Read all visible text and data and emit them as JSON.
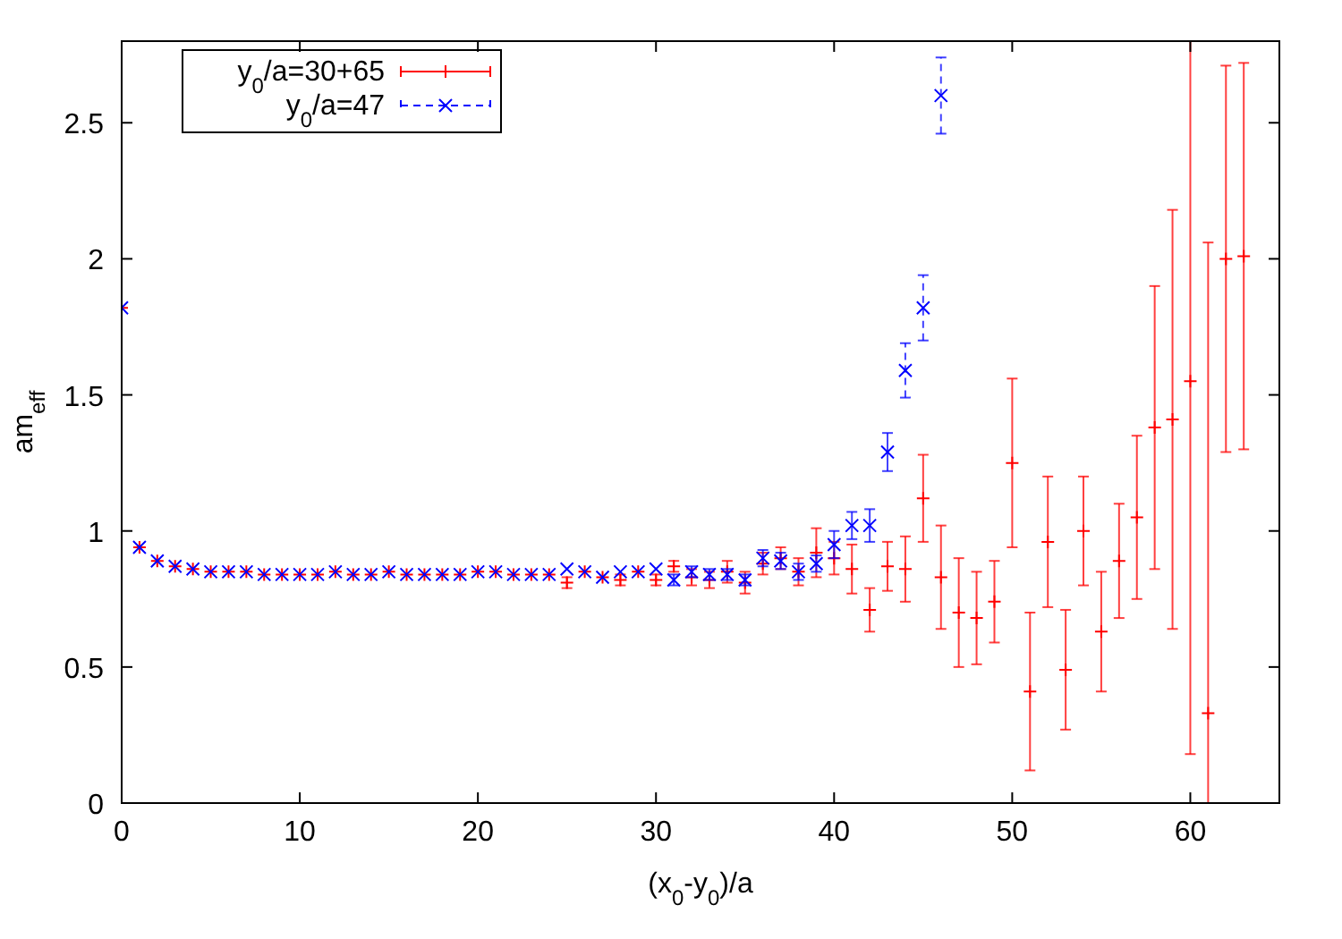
{
  "chart_data": {
    "type": "scatter",
    "xlabel": "(x$_{0}$-y$_{0}$)/a",
    "ylabel": "am$_{eff}$",
    "x": [
      0,
      1,
      2,
      3,
      4,
      5,
      6,
      7,
      8,
      9,
      10,
      11,
      12,
      13,
      14,
      15,
      16,
      17,
      18,
      19,
      20,
      21,
      22,
      23,
      24,
      25,
      26,
      27,
      28,
      29,
      30,
      31,
      32,
      33,
      34,
      35,
      36,
      37,
      38,
      39,
      40,
      41,
      42,
      43,
      44,
      45,
      46,
      47,
      48,
      49,
      50,
      51,
      52,
      53,
      54,
      55,
      56,
      57,
      58,
      59,
      60,
      61,
      62,
      63
    ],
    "series": [
      {
        "name": "y$_{0}$/a=30+65",
        "color": "#ff0000",
        "marker": "cross",
        "line_style": "solid",
        "values": [
          1.82,
          0.94,
          0.89,
          0.87,
          0.86,
          0.85,
          0.85,
          0.85,
          0.84,
          0.84,
          0.84,
          0.84,
          0.85,
          0.84,
          0.84,
          0.85,
          0.84,
          0.84,
          0.84,
          0.84,
          0.85,
          0.85,
          0.84,
          0.84,
          0.84,
          0.81,
          0.85,
          0.83,
          0.82,
          0.85,
          0.82,
          0.87,
          0.83,
          0.82,
          0.85,
          0.81,
          0.88,
          0.9,
          0.85,
          0.92,
          0.9,
          0.86,
          0.71,
          0.87,
          0.86,
          1.12,
          0.83,
          0.7,
          0.68,
          0.74,
          1.25,
          0.41,
          0.96,
          0.49,
          1.0,
          0.63,
          0.89,
          1.05,
          1.38,
          1.41,
          1.55,
          0.33,
          2.0,
          2.01
        ],
        "errors": [
          null,
          null,
          null,
          null,
          null,
          null,
          null,
          null,
          null,
          null,
          null,
          null,
          null,
          null,
          null,
          null,
          null,
          null,
          null,
          null,
          null,
          null,
          null,
          null,
          null,
          0.02,
          null,
          null,
          0.02,
          null,
          0.02,
          0.02,
          0.03,
          0.03,
          0.04,
          0.04,
          0.04,
          0.04,
          0.05,
          0.09,
          0.06,
          0.09,
          0.08,
          0.09,
          0.12,
          0.16,
          0.19,
          0.2,
          0.17,
          0.15,
          0.31,
          0.29,
          0.24,
          0.22,
          0.2,
          0.22,
          0.21,
          0.3,
          0.52,
          0.77,
          [
            0.18,
            2.8
          ],
          [
            0,
            2.06
          ],
          0.71,
          0.71
        ]
      },
      {
        "name": "y$_{0}$/a=47",
        "color": "#0000ff",
        "marker": "cross",
        "line_style": "dashed",
        "values": [
          1.82,
          0.94,
          0.89,
          0.87,
          0.86,
          0.85,
          0.85,
          0.85,
          0.84,
          0.84,
          0.84,
          0.84,
          0.85,
          0.84,
          0.84,
          0.85,
          0.84,
          0.84,
          0.84,
          0.84,
          0.85,
          0.85,
          0.84,
          0.84,
          0.84,
          0.86,
          0.85,
          0.83,
          0.85,
          0.85,
          0.86,
          0.82,
          0.85,
          0.84,
          0.84,
          0.82,
          0.9,
          0.89,
          0.85,
          0.88,
          0.95,
          1.02,
          1.02,
          1.29,
          1.59,
          1.82,
          2.6,
          null,
          null,
          null,
          null,
          null,
          null,
          null,
          null,
          null,
          null,
          null,
          null,
          null,
          null,
          null,
          null,
          null
        ],
        "errors": [
          null,
          null,
          null,
          null,
          null,
          null,
          null,
          null,
          null,
          null,
          null,
          null,
          null,
          null,
          null,
          null,
          null,
          null,
          null,
          null,
          null,
          null,
          null,
          null,
          null,
          null,
          null,
          null,
          null,
          null,
          null,
          0.02,
          0.02,
          0.02,
          0.02,
          0.02,
          0.03,
          0.03,
          0.03,
          0.03,
          0.05,
          0.05,
          0.06,
          0.07,
          0.1,
          0.12,
          0.14,
          null,
          null,
          null,
          null,
          null,
          null,
          null,
          null,
          null,
          null,
          null,
          null,
          null,
          null,
          null,
          null,
          null
        ]
      }
    ],
    "xlim": [
      0,
      65
    ],
    "xticks": [
      0,
      10,
      20,
      30,
      40,
      50,
      60
    ],
    "ylim": [
      0,
      2.8
    ],
    "yticks": [
      0,
      0.5,
      1,
      1.5,
      2,
      2.5
    ],
    "grid": false,
    "legend": "top left"
  }
}
